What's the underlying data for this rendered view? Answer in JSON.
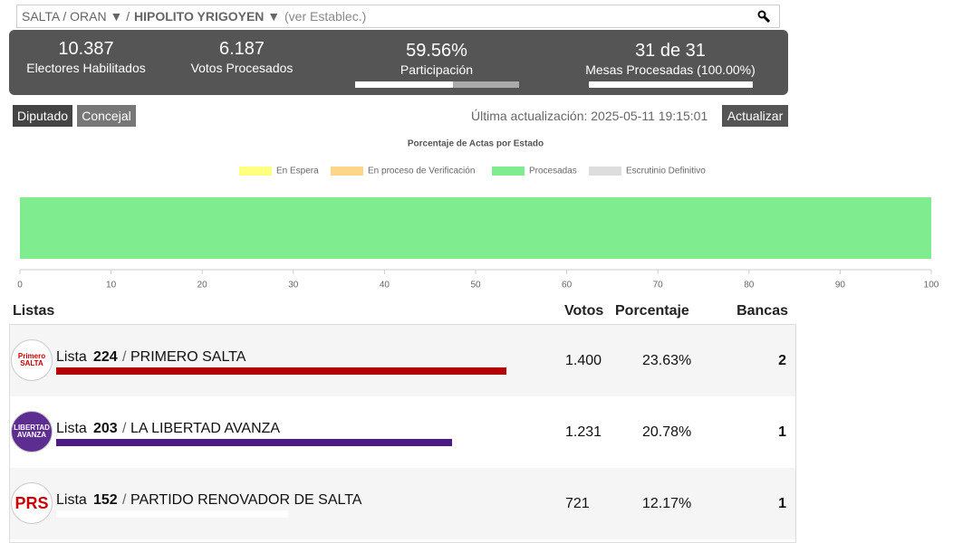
{
  "breadcrumb": {
    "path": "SALTA / ORAN ▼ /",
    "current": "HIPOLITO YRIGOYEN ▼",
    "link": "(ver Establec.)"
  },
  "stats": [
    {
      "value": "10.387",
      "label": "Electores Habilitados"
    },
    {
      "value": "6.187",
      "label": "Votos Procesados"
    },
    {
      "value": "59.56%",
      "label": "Participación",
      "progress": 59.56
    },
    {
      "value": "31 de 31",
      "label": "Mesas Procesadas (100.00%)",
      "progress": 100
    }
  ],
  "tabs": [
    "Diputado",
    "Concejal"
  ],
  "last_update": "Última actualización: 2025-05-11 19:15:01",
  "update_button": "Actualizar",
  "chart_data": {
    "type": "bar",
    "orientation": "horizontal",
    "stacked": true,
    "title": "Porcentaje de Actas por Estado",
    "series": [
      {
        "name": "En Espera",
        "color": "#ffff80",
        "values": [
          0
        ]
      },
      {
        "name": "En proceso de Verificación",
        "color": "#ffd58a",
        "values": [
          0
        ]
      },
      {
        "name": "Procesadas",
        "color": "#80ec90",
        "values": [
          100
        ]
      },
      {
        "name": "Escrutinio Definitivo",
        "color": "#dddddd",
        "values": [
          0
        ]
      }
    ],
    "xlim": [
      0,
      100
    ],
    "xticks": [
      0,
      10,
      20,
      30,
      40,
      50,
      60,
      70,
      80,
      90,
      100
    ],
    "legend": "top"
  },
  "table": {
    "headers": [
      "Listas",
      "Votos",
      "Porcentaje",
      "Bancas"
    ],
    "list_word": "Lista",
    "separator": "/",
    "rows": [
      {
        "logo": "Primero SALTA",
        "number": "224",
        "name": "PRIMERO SALTA",
        "votes": "1.400",
        "percent": "23.63%",
        "percent_value": 23.63,
        "bancas": "2",
        "color": "#b50000",
        "logo_color": "#ffffff"
      },
      {
        "logo": "LIBERTAD AVANZA",
        "number": "203",
        "name": "LA LIBERTAD AVANZA",
        "votes": "1.231",
        "percent": "20.78%",
        "percent_value": 20.78,
        "bancas": "1",
        "color": "#4b1a86",
        "logo_color": "#5e2d91"
      },
      {
        "logo": "PRS",
        "number": "152",
        "name": "PARTIDO RENOVADOR DE SALTA",
        "votes": "721",
        "percent": "12.17%",
        "percent_value": 12.17,
        "bancas": "1",
        "color": "#ffffff",
        "logo_color": "#ffffff"
      }
    ]
  }
}
